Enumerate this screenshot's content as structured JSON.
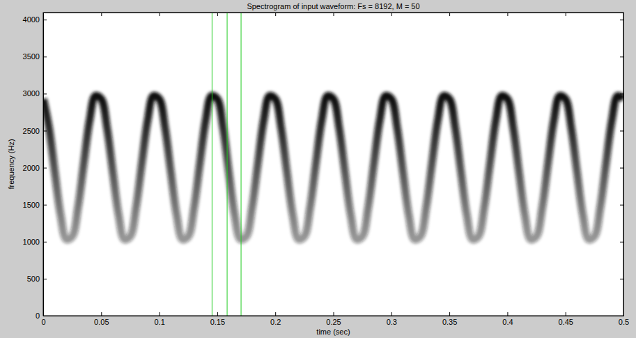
{
  "chart_data": {
    "type": "line",
    "title": "Spectrogram of input waveform:  Fs = 8192, M = 50",
    "x_label": "time (sec)",
    "y_label": "frequency (Hz)",
    "x": [
      0,
      0.005,
      0.01,
      0.015,
      0.02,
      0.025,
      0.03,
      0.035,
      0.04,
      0.045,
      0.05,
      0.055,
      0.06,
      0.065,
      0.07,
      0.075,
      0.08,
      0.085,
      0.09,
      0.095,
      0.1,
      0.105,
      0.11,
      0.115,
      0.12,
      0.125,
      0.13,
      0.135,
      0.14,
      0.145,
      0.15,
      0.155,
      0.16,
      0.165,
      0.17,
      0.175,
      0.18,
      0.185,
      0.19,
      0.195,
      0.2,
      0.205,
      0.21,
      0.215,
      0.22,
      0.225,
      0.23,
      0.235,
      0.24,
      0.245,
      0.25,
      0.255,
      0.26,
      0.265,
      0.27,
      0.275,
      0.28,
      0.285,
      0.29,
      0.295,
      0.3,
      0.305,
      0.31,
      0.315,
      0.32,
      0.325,
      0.33,
      0.335,
      0.34,
      0.345,
      0.35,
      0.355,
      0.36,
      0.365,
      0.37,
      0.375,
      0.38,
      0.385,
      0.39,
      0.395,
      0.4,
      0.405,
      0.41,
      0.415,
      0.42,
      0.425,
      0.43,
      0.435,
      0.44,
      0.445,
      0.45,
      0.455,
      0.46,
      0.465,
      0.47,
      0.475,
      0.48,
      0.485,
      0.49,
      0.495,
      0.5
    ],
    "values": [
      2930,
      2540,
      1940,
      1360,
      1030,
      1070,
      1460,
      2060,
      2640,
      2970,
      2930,
      2540,
      1940,
      1360,
      1030,
      1070,
      1460,
      2060,
      2640,
      2970,
      2930,
      2540,
      1940,
      1360,
      1030,
      1070,
      1460,
      2060,
      2640,
      2970,
      2930,
      2540,
      1940,
      1360,
      1030,
      1070,
      1460,
      2060,
      2640,
      2970,
      2930,
      2540,
      1940,
      1360,
      1030,
      1070,
      1460,
      2060,
      2640,
      2970,
      2930,
      2540,
      1940,
      1360,
      1030,
      1070,
      1460,
      2060,
      2640,
      2970,
      2930,
      2540,
      1940,
      1360,
      1030,
      1070,
      1460,
      2060,
      2640,
      2970,
      2930,
      2540,
      1940,
      1360,
      1030,
      1070,
      1460,
      2060,
      2640,
      2970,
      2930,
      2540,
      1940,
      1360,
      1030,
      1070,
      1460,
      2060,
      2640,
      2970,
      2930,
      2540,
      1940,
      1360,
      1030,
      1070,
      1460,
      2060,
      2640,
      2970,
      2930
    ],
    "color": "#111111",
    "vertical_lines": {
      "x": [
        0.1455,
        0.1585,
        0.1705
      ],
      "color": "#22cc22"
    },
    "xlim": [
      0,
      0.5
    ],
    "xticks": [
      0,
      0.05,
      0.1,
      0.15,
      0.2,
      0.25,
      0.3,
      0.35,
      0.4,
      0.45,
      0.5
    ],
    "ylim": [
      0,
      4096
    ],
    "yticks": [
      0,
      500,
      1000,
      1500,
      2000,
      2500,
      3000,
      3500,
      4000
    ],
    "grid": false
  }
}
